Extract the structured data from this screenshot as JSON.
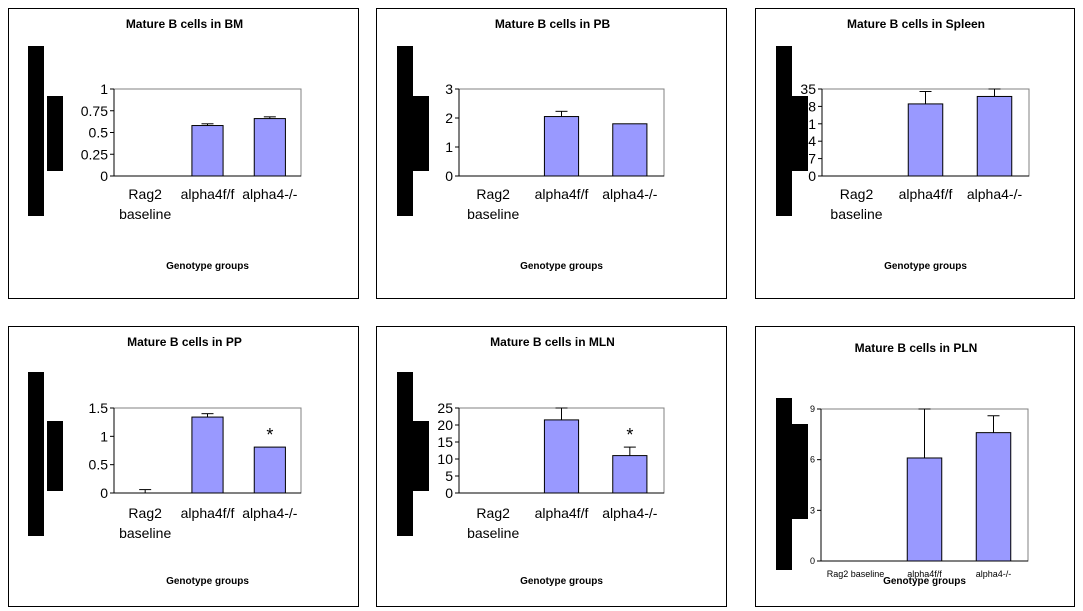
{
  "colors": {
    "bar_fill": "#9999ff",
    "bar_stroke": "#000000",
    "axis_box": "#808080",
    "side_block": "#000000"
  },
  "chart_data": [
    {
      "type": "bar",
      "title": "Mature B cells  in BM",
      "xlabel": "Genotype groups",
      "ylabel": "",
      "categories": [
        "Rag2 baseline",
        "alpha4f/f",
        "alpha4-/-"
      ],
      "category_lines": [
        [
          "Rag2",
          "baseline"
        ],
        [
          "alpha4f/f"
        ],
        [
          "alpha4-/-"
        ]
      ],
      "values": [
        0,
        0.58,
        0.66
      ],
      "errors": [
        0,
        0.02,
        0.02
      ],
      "ylim": [
        0,
        1
      ],
      "yticks": [
        0,
        0.25,
        0.5,
        0.75,
        1
      ],
      "ytick_labels": [
        "0",
        "0.25",
        "0.5",
        "0.75",
        "1"
      ],
      "annotations": [
        "",
        "",
        ""
      ],
      "grid": false,
      "legend": "none"
    },
    {
      "type": "bar",
      "title": "Mature B cells  in PB",
      "xlabel": "Genotype groups",
      "ylabel": "",
      "categories": [
        "Rag2 baseline",
        "alpha4f/f",
        "alpha4-/-"
      ],
      "category_lines": [
        [
          "Rag2",
          "baseline"
        ],
        [
          "alpha4f/f"
        ],
        [
          "alpha4-/-"
        ]
      ],
      "values": [
        0,
        2.05,
        1.8
      ],
      "errors": [
        0,
        0.18,
        0
      ],
      "ylim": [
        0,
        3
      ],
      "yticks": [
        0,
        1,
        2,
        3
      ],
      "ytick_labels": [
        "0",
        "1",
        "2",
        "3"
      ],
      "annotations": [
        "",
        "",
        ""
      ],
      "grid": false,
      "legend": "none"
    },
    {
      "type": "bar",
      "title": "Mature B cells  in Spleen",
      "xlabel": "Genotype groups",
      "ylabel": "",
      "categories": [
        "Rag2 baseline",
        "alpha4f/f",
        "alpha4-/-"
      ],
      "category_lines": [
        [
          "Rag2",
          "baseline"
        ],
        [
          "alpha4f/f"
        ],
        [
          "alpha4-/-"
        ]
      ],
      "values": [
        0,
        29,
        32
      ],
      "errors": [
        0,
        5,
        3
      ],
      "ylim": [
        0,
        35
      ],
      "yticks": [
        0,
        7,
        14,
        21,
        28,
        35
      ],
      "ytick_labels": [
        "0",
        "7",
        "14",
        "21",
        "28",
        "35"
      ],
      "annotations": [
        "",
        "",
        ""
      ],
      "grid": false,
      "legend": "none"
    },
    {
      "type": "bar",
      "title": "Mature B cells  in PP",
      "xlabel": "Genotype groups",
      "ylabel": "",
      "categories": [
        "Rag2 baseline",
        "alpha4f/f",
        "alpha4-/-"
      ],
      "category_lines": [
        [
          "Rag2",
          "baseline"
        ],
        [
          "alpha4f/f"
        ],
        [
          "alpha4-/-"
        ]
      ],
      "values": [
        0,
        1.34,
        0.81
      ],
      "errors": [
        0.06,
        0.06,
        0
      ],
      "ylim": [
        0,
        1.5
      ],
      "yticks": [
        0,
        0.5,
        1,
        1.5
      ],
      "ytick_labels": [
        "0",
        "0.5",
        "1",
        "1.5"
      ],
      "annotations": [
        "",
        "",
        "*"
      ],
      "grid": false,
      "legend": "none"
    },
    {
      "type": "bar",
      "title": "Mature B cells  in MLN",
      "xlabel": "Genotype groups",
      "ylabel": "",
      "categories": [
        "Rag2 baseline",
        "alpha4f/f",
        "alpha4-/-"
      ],
      "category_lines": [
        [
          "Rag2",
          "baseline"
        ],
        [
          "alpha4f/f"
        ],
        [
          "alpha4-/-"
        ]
      ],
      "values": [
        0,
        21.5,
        11
      ],
      "errors": [
        0,
        3.5,
        2.5
      ],
      "ylim": [
        0,
        25
      ],
      "yticks": [
        0,
        5,
        10,
        15,
        20,
        25
      ],
      "ytick_labels": [
        "0",
        "5",
        "10",
        "15",
        "20",
        "25"
      ],
      "annotations": [
        "",
        "",
        "*"
      ],
      "grid": false,
      "legend": "none"
    },
    {
      "type": "bar",
      "title": "Mature B cells  in PLN",
      "xlabel": "Genotype groups",
      "ylabel": "",
      "categories": [
        "Rag2 baseline",
        "alpha4f/f",
        "alpha4-/-"
      ],
      "category_lines": [
        [
          "Rag2 baseline"
        ],
        [
          "alpha4f/f"
        ],
        [
          "alpha4-/-"
        ]
      ],
      "values": [
        0,
        6.1,
        7.6
      ],
      "errors": [
        0,
        2.9,
        1
      ],
      "ylim": [
        0,
        9
      ],
      "yticks": [
        0,
        3,
        6,
        9
      ],
      "ytick_labels": [
        "0",
        "3",
        "6",
        "9"
      ],
      "annotations": [
        "",
        "",
        ""
      ],
      "grid": false,
      "legend": "none"
    }
  ]
}
